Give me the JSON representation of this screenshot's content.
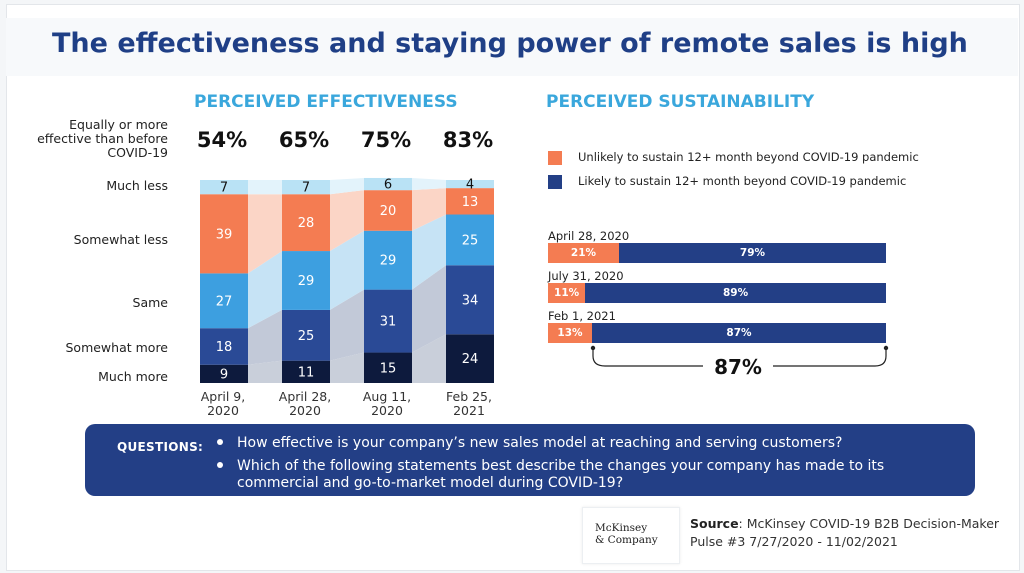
{
  "title": "The effectiveness and staying power of remote sales is high",
  "effectiveness": {
    "heading": "PERCEIVED EFFECTIVENESS",
    "summary_label": "Equally or more effective than before COVID-19",
    "summary_values": [
      "54%",
      "65%",
      "75%",
      "83%"
    ],
    "row_labels": [
      "Much less",
      "Somewhat less",
      "Same",
      "Somewhat more",
      "Much more"
    ],
    "date_labels": [
      [
        "April 9,",
        "2020"
      ],
      [
        "April 28,",
        "2020"
      ],
      [
        "Aug 11,",
        "2020"
      ],
      [
        "Feb 25,",
        "2021"
      ]
    ]
  },
  "sustainability": {
    "heading": "PERCEIVED SUSTAINABILITY",
    "legend": [
      {
        "label": "Unlikely to sustain 12+ month beyond COVID-19 pandemic",
        "color": "#f47c52"
      },
      {
        "label": "Likely to sustain 12+ month beyond COVID-19 pandemic",
        "color": "#233f86"
      }
    ],
    "rows": [
      {
        "date": "April 28, 2020",
        "unlikely": 21,
        "likely": 79,
        "unlikely_label": "21%",
        "likely_label": "79%"
      },
      {
        "date": "July 31, 2020",
        "unlikely": 11,
        "likely": 89,
        "unlikely_label": "11%",
        "likely_label": "89%"
      },
      {
        "date": "Feb 1, 2021",
        "unlikely": 13,
        "likely": 87,
        "unlikely_label": "13%",
        "likely_label": "87%"
      }
    ],
    "bracket_value": "87%"
  },
  "questions": {
    "title": "QUESTIONS:",
    "items": [
      "How effective is your company’s new sales model at reaching and serving customers?",
      "Which of the following statements best describe the changes your company has made to its commercial and go-to-market model during COVID-19?"
    ]
  },
  "logo": {
    "line1": "McKinsey",
    "line2": "& Company"
  },
  "source": {
    "label": "Source",
    "text": ": McKinsey COVID-19 B2B Decision-Maker Pulse #3 7/27/2020 - 11/02/2021"
  },
  "chart_data": [
    {
      "type": "bar",
      "stacked": true,
      "title": "PERCEIVED EFFECTIVENESS",
      "categories": [
        "April 9, 2020",
        "April 28, 2020",
        "Aug 11, 2020",
        "Feb 25, 2021"
      ],
      "series": [
        {
          "name": "Much more",
          "values": [
            9,
            11,
            15,
            24
          ],
          "color": "#0d1a3d"
        },
        {
          "name": "Somewhat more",
          "values": [
            18,
            25,
            31,
            34
          ],
          "color": "#2a4a96"
        },
        {
          "name": "Same",
          "values": [
            27,
            29,
            29,
            25
          ],
          "color": "#3d9fe0"
        },
        {
          "name": "Somewhat less",
          "values": [
            39,
            28,
            20,
            13
          ],
          "color": "#f47c52"
        },
        {
          "name": "Much less",
          "values": [
            7,
            7,
            6,
            4
          ],
          "color": "#b9e2f5"
        }
      ],
      "band_colors": [
        "#c9cfda",
        "#c2c9d8",
        "#c6e3f5",
        "#fbd5c6",
        "#e3f3fb"
      ],
      "ylim": [
        0,
        100
      ],
      "grid": false
    },
    {
      "type": "bar",
      "stacked": true,
      "orientation": "horizontal",
      "title": "PERCEIVED SUSTAINABILITY",
      "categories": [
        "April 28, 2020",
        "July 31, 2020",
        "Feb 1, 2021"
      ],
      "series": [
        {
          "name": "Unlikely to sustain 12+ month beyond COVID-19 pandemic",
          "values": [
            21,
            11,
            13
          ]
        },
        {
          "name": "Likely to sustain 12+ month beyond COVID-19 pandemic",
          "values": [
            79,
            89,
            87
          ]
        }
      ],
      "xlim": [
        0,
        100
      ]
    }
  ]
}
